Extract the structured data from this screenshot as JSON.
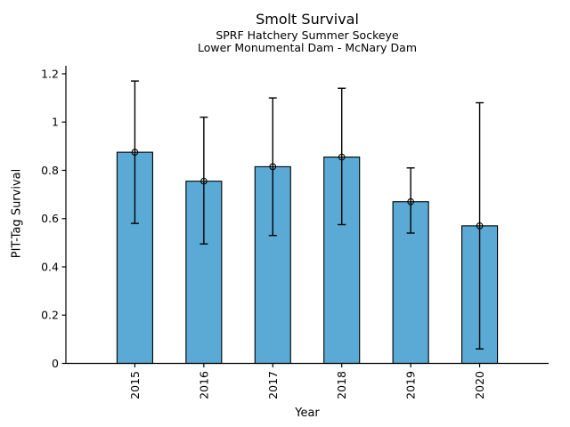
{
  "chart_data": {
    "type": "bar",
    "title": "Smolt Survival",
    "subtitle_lines": [
      "SPRF Hatchery Summer Sockeye",
      "Lower Monumental Dam - McNary Dam"
    ],
    "xlabel": "Year",
    "ylabel": "PIT-Tag Survival",
    "categories": [
      "2015",
      "2016",
      "2017",
      "2018",
      "2019",
      "2020"
    ],
    "values": [
      0.875,
      0.755,
      0.815,
      0.855,
      0.67,
      0.57
    ],
    "error_low": [
      0.58,
      0.495,
      0.53,
      0.575,
      0.54,
      0.06
    ],
    "error_high": [
      1.17,
      1.02,
      1.1,
      1.14,
      0.81,
      1.08
    ],
    "yticks": [
      0,
      0.2,
      0.4,
      0.6,
      0.8,
      1,
      1.2
    ],
    "ytick_labels": [
      "0",
      "0.2",
      "0.4",
      "0.6",
      "0.8",
      "1",
      "1.2"
    ],
    "ylim": [
      0,
      1.233
    ],
    "marker": "open-circle",
    "grid": false,
    "legend": "none",
    "colors": {
      "bar_fill": "#5AAAD5",
      "bar_edge": "#000000",
      "error_bar": "#000000",
      "axis": "#000000",
      "text": "#000000",
      "background": "#ffffff"
    }
  }
}
